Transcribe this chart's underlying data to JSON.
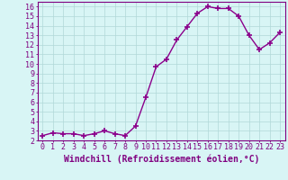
{
  "x": [
    0,
    1,
    2,
    3,
    4,
    5,
    6,
    7,
    8,
    9,
    10,
    11,
    12,
    13,
    14,
    15,
    16,
    17,
    18,
    19,
    20,
    21,
    22,
    23
  ],
  "y": [
    2.5,
    2.8,
    2.7,
    2.7,
    2.5,
    2.7,
    3.0,
    2.7,
    2.5,
    3.5,
    6.5,
    9.7,
    10.5,
    12.5,
    13.9,
    15.3,
    16.0,
    15.8,
    15.8,
    15.0,
    13.0,
    11.5,
    12.2,
    13.3
  ],
  "line_color": "#8B008B",
  "marker": "+",
  "marker_size": 4,
  "bg_color": "#d8f5f5",
  "grid_color": "#b0d8d8",
  "xlabel": "Windchill (Refroidissement éolien,°C)",
  "ylabel": "",
  "title": "",
  "xlim": [
    -0.5,
    23.5
  ],
  "ylim": [
    2,
    16.5
  ],
  "yticks": [
    2,
    3,
    4,
    5,
    6,
    7,
    8,
    9,
    10,
    11,
    12,
    13,
    14,
    15,
    16
  ],
  "xticks": [
    0,
    1,
    2,
    3,
    4,
    5,
    6,
    7,
    8,
    9,
    10,
    11,
    12,
    13,
    14,
    15,
    16,
    17,
    18,
    19,
    20,
    21,
    22,
    23
  ],
  "tick_color": "#800080",
  "spine_color": "#800080",
  "font_color": "#800080",
  "font_size": 6,
  "xlabel_fontsize": 7,
  "linewidth": 1.0,
  "marker_linewidth": 1.2
}
